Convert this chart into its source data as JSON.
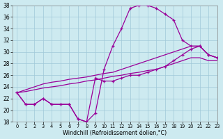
{
  "xlabel": "Windchill (Refroidissement éolien,°C)",
  "background_color": "#cdeaf0",
  "grid_color": "#a0c8d8",
  "line_color": "#990099",
  "x_hours": [
    0,
    1,
    2,
    3,
    4,
    5,
    6,
    7,
    8,
    9,
    10,
    11,
    12,
    13,
    14,
    15,
    16,
    17,
    18,
    19,
    20,
    21,
    22,
    23
  ],
  "curve_main": [
    23.0,
    21.0,
    21.0,
    22.0,
    21.0,
    21.0,
    21.0,
    18.5,
    18.0,
    19.5,
    27.0,
    31.0,
    34.0,
    37.5,
    38.0,
    38.0,
    37.5,
    36.5,
    35.5,
    32.0,
    31.0,
    31.0,
    29.5,
    29.0
  ],
  "curve_low": [
    23.0,
    21.0,
    21.0,
    22.0,
    21.0,
    21.0,
    21.0,
    18.5,
    18.0,
    25.5,
    25.0,
    25.0,
    25.5,
    26.0,
    26.0,
    26.5,
    27.0,
    27.5,
    28.5,
    29.5,
    30.5,
    31.0,
    29.5,
    29.0
  ],
  "line_upper": [
    23.0,
    23.5,
    24.0,
    24.5,
    24.8,
    25.0,
    25.3,
    25.5,
    25.7,
    26.0,
    26.3,
    26.5,
    27.0,
    27.5,
    28.0,
    28.5,
    29.0,
    29.5,
    30.0,
    30.5,
    31.0,
    31.0,
    29.5,
    29.0
  ],
  "line_lower": [
    23.0,
    23.2,
    23.5,
    23.8,
    24.0,
    24.2,
    24.5,
    24.7,
    25.0,
    25.2,
    25.5,
    25.8,
    26.0,
    26.3,
    26.5,
    26.8,
    27.0,
    27.5,
    28.0,
    28.5,
    29.0,
    29.0,
    28.5,
    28.5
  ],
  "ylim": [
    18,
    38
  ],
  "xlim": [
    -0.5,
    23
  ],
  "yticks": [
    18,
    20,
    22,
    24,
    26,
    28,
    30,
    32,
    34,
    36,
    38
  ],
  "xticks": [
    0,
    1,
    2,
    3,
    4,
    5,
    6,
    7,
    8,
    9,
    10,
    11,
    12,
    13,
    14,
    15,
    16,
    17,
    18,
    19,
    20,
    21,
    22,
    23
  ]
}
